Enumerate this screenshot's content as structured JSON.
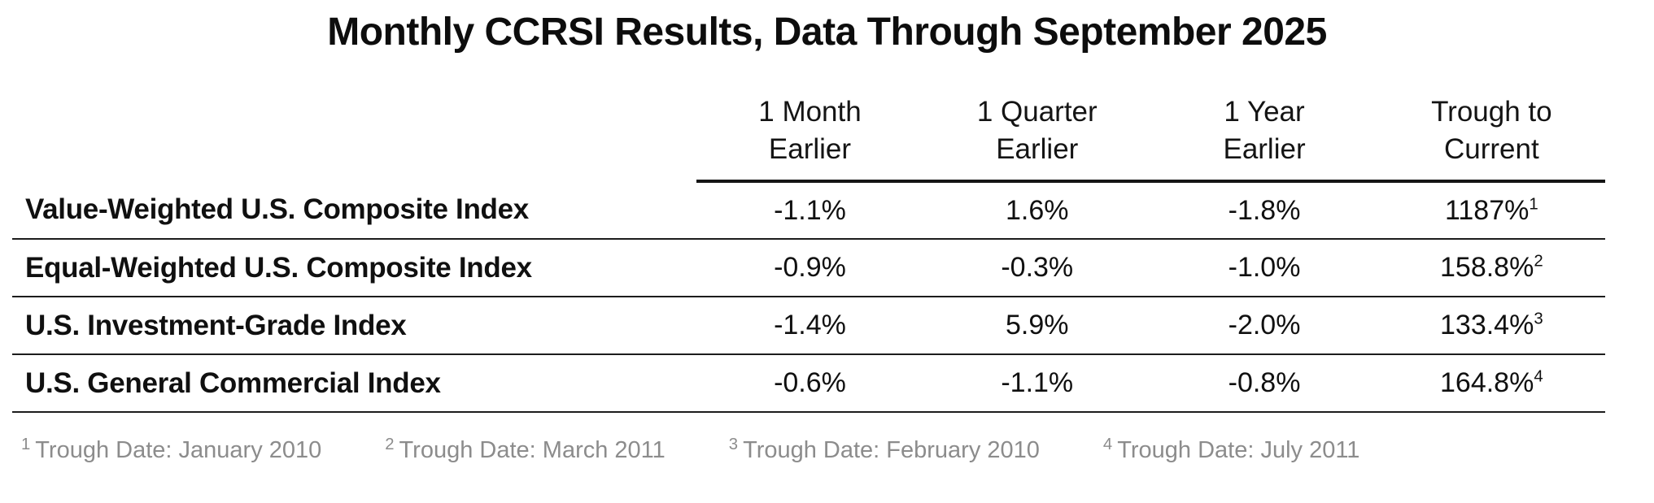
{
  "title": "Monthly CCRSI Results, Data Through September 2025",
  "table": {
    "headers": {
      "col1": "1 Month\nEarlier",
      "col2": "1 Quarter\nEarlier",
      "col3": "1 Year\nEarlier",
      "col4": "Trough to\nCurrent"
    },
    "rows": [
      {
        "label": "Value-Weighted U.S. Composite Index",
        "one_month": "-1.1%",
        "one_quarter": "1.6%",
        "one_year": "-1.8%",
        "trough_to_current": "1187%",
        "footnote_ref": "1"
      },
      {
        "label": "Equal-Weighted U.S. Composite Index",
        "one_month": "-0.9%",
        "one_quarter": "-0.3%",
        "one_year": "-1.0%",
        "trough_to_current": "158.8%",
        "footnote_ref": "2"
      },
      {
        "label": "U.S. Investment-Grade Index",
        "one_month": "-1.4%",
        "one_quarter": "5.9%",
        "one_year": "-2.0%",
        "trough_to_current": "133.4%",
        "footnote_ref": "3"
      },
      {
        "label": "U.S. General Commercial Index",
        "one_month": "-0.6%",
        "one_quarter": "-1.1%",
        "one_year": "-0.8%",
        "trough_to_current": "164.8%",
        "footnote_ref": "4"
      }
    ]
  },
  "footnotes": [
    {
      "ref": "1",
      "text": "Trough Date: January 2010"
    },
    {
      "ref": "2",
      "text": "Trough Date: March 2011"
    },
    {
      "ref": "3",
      "text": "Trough Date: February 2010"
    },
    {
      "ref": "4",
      "text": "Trough Date: July 2011"
    }
  ],
  "colors": {
    "text": "#101010",
    "rule_lines": "#1c1c1c",
    "footnote_gray": "#8c8c8c",
    "background": "#ffffff"
  },
  "chart_data": {
    "type": "table",
    "title": "Monthly CCRSI Results, Data Through September 2025",
    "columns": [
      "",
      "1 Month Earlier",
      "1 Quarter Earlier",
      "1 Year Earlier",
      "Trough to Current"
    ],
    "rows": [
      [
        "Value-Weighted U.S. Composite Index",
        "-1.1%",
        "1.6%",
        "-1.8%",
        "1187%¹"
      ],
      [
        "Equal-Weighted U.S. Composite Index",
        "-0.9%",
        "-0.3%",
        "-1.0%",
        "158.8%²"
      ],
      [
        "U.S. Investment-Grade Index",
        "-1.4%",
        "5.9%",
        "-2.0%",
        "133.4%³"
      ],
      [
        "U.S. General Commercial Index",
        "-0.6%",
        "-1.1%",
        "-0.8%",
        "164.8%⁴"
      ]
    ],
    "footnotes": [
      "¹ Trough Date: January 2010",
      "² Trough Date: March 2011",
      "³ Trough Date: February 2010",
      "⁴ Trough Date: July 2011"
    ],
    "layout": {
      "grid": "horizontal rules between rows",
      "header_rule": "above data columns only",
      "footnote_color": "#8c8c8c"
    }
  }
}
